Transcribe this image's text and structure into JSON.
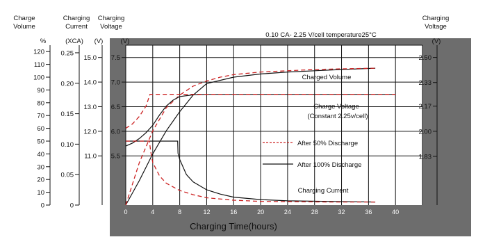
{
  "chart_data": {
    "type": "line",
    "title": "0.10 CA- 2.25 V/cell  temperature25°C",
    "xlabel": "Charging Time(hours)",
    "x_ticks": [
      0,
      4,
      8,
      12,
      16,
      20,
      24,
      28,
      32,
      36,
      40
    ],
    "xlim": [
      0,
      44
    ],
    "axes": [
      {
        "id": "volume",
        "label_lines": [
          "Charge",
          "Volume"
        ],
        "unit": "%",
        "ticks": [
          0,
          10,
          20,
          30,
          40,
          50,
          60,
          70,
          80,
          90,
          100,
          110,
          120
        ],
        "range": [
          0,
          125
        ]
      },
      {
        "id": "current",
        "label_lines": [
          "Charging",
          "Current"
        ],
        "unit": "(XCA)",
        "ticks": [
          "0",
          "0.05",
          "0.10",
          "0.15",
          "0.20",
          "0.25"
        ],
        "range": [
          0,
          0.2625
        ]
      },
      {
        "id": "voltage15",
        "label_lines": [
          "Charging",
          "Voltage"
        ],
        "unit": "(V)",
        "ticks": [
          "11.0",
          "12.0",
          "13.0",
          "14.0",
          "15.0"
        ],
        "range": [
          9.0,
          15.5
        ]
      },
      {
        "id": "voltage7",
        "label_lines": [],
        "unit": "(V)",
        "ticks": [
          "5.5",
          "6.0",
          "6.5",
          "7.0",
          "7.5"
        ],
        "range": [
          4.5,
          7.75
        ]
      },
      {
        "id": "cell",
        "label_lines": [
          "Charging",
          "Voltage"
        ],
        "unit": "(V)",
        "ticks": [
          "1.83",
          "2.00",
          "2.17",
          "2.33",
          "2.50"
        ],
        "range": [
          1.5,
          2.583
        ]
      }
    ],
    "legend": [
      {
        "label": "After 50% Discharge",
        "style": "dashed",
        "color": "#cc2222"
      },
      {
        "label": "After 100% Discharge",
        "style": "solid",
        "color": "#111111"
      }
    ],
    "annotations": [
      "Charged Volume",
      "Charge Voltage",
      "(Constant 2.25v/cell)",
      "Charging Current"
    ],
    "series": [
      {
        "name": "Charged Volume",
        "discharge": "100%",
        "axis": "volume",
        "x": [
          0,
          2,
          4,
          6,
          8,
          10,
          12,
          16,
          20,
          24,
          28,
          32,
          37
        ],
        "y": [
          0,
          19,
          40,
          58,
          73,
          86,
          95,
          100,
          102.5,
          104,
          105,
          106,
          107
        ]
      },
      {
        "name": "Charged Volume",
        "discharge": "50%",
        "axis": "volume",
        "x": [
          0,
          2,
          4,
          6,
          8,
          10,
          12,
          14,
          16,
          20,
          24,
          28,
          32,
          37
        ],
        "y": [
          0,
          33,
          58,
          76,
          86,
          93,
          97,
          100,
          102,
          104,
          105,
          106,
          106.5,
          107
        ]
      },
      {
        "name": "Charge Voltage",
        "discharge": "100%",
        "axis": "cell",
        "x": [
          0,
          1,
          2,
          3,
          4,
          5,
          6,
          7,
          8,
          10,
          12,
          40
        ],
        "y": [
          1.9,
          1.92,
          1.95,
          1.99,
          2.04,
          2.11,
          2.17,
          2.21,
          2.235,
          2.247,
          2.25,
          2.25
        ]
      },
      {
        "name": "Charge Voltage",
        "discharge": "50%",
        "axis": "cell",
        "x": [
          0,
          1,
          2,
          3,
          3.6,
          4,
          12,
          40
        ],
        "y": [
          2.02,
          2.05,
          2.1,
          2.17,
          2.25,
          2.25,
          2.25,
          2.25
        ]
      },
      {
        "name": "Charging Current",
        "discharge": "100%",
        "axis": "current",
        "x": [
          0,
          7.7,
          7.75,
          8,
          9,
          10,
          12,
          14,
          16,
          20,
          24,
          30,
          37
        ],
        "y": [
          0.105,
          0.105,
          0.085,
          0.075,
          0.05,
          0.038,
          0.025,
          0.018,
          0.013,
          0.009,
          0.007,
          0.006,
          0.005
        ]
      },
      {
        "name": "Charging Current",
        "discharge": "50%",
        "axis": "current",
        "x": [
          0,
          3.5,
          3.7,
          4,
          5,
          6,
          8,
          10,
          12,
          16,
          20,
          30,
          37
        ],
        "y": [
          0.105,
          0.105,
          0.088,
          0.07,
          0.048,
          0.036,
          0.024,
          0.017,
          0.012,
          0.008,
          0.006,
          0.005,
          0.005
        ]
      }
    ]
  },
  "colors": {
    "frame": "#6d6d6d",
    "plot_bg": "#ffffff",
    "grid": "#111111",
    "series_100": "#111111",
    "series_50": "#cc2222"
  }
}
